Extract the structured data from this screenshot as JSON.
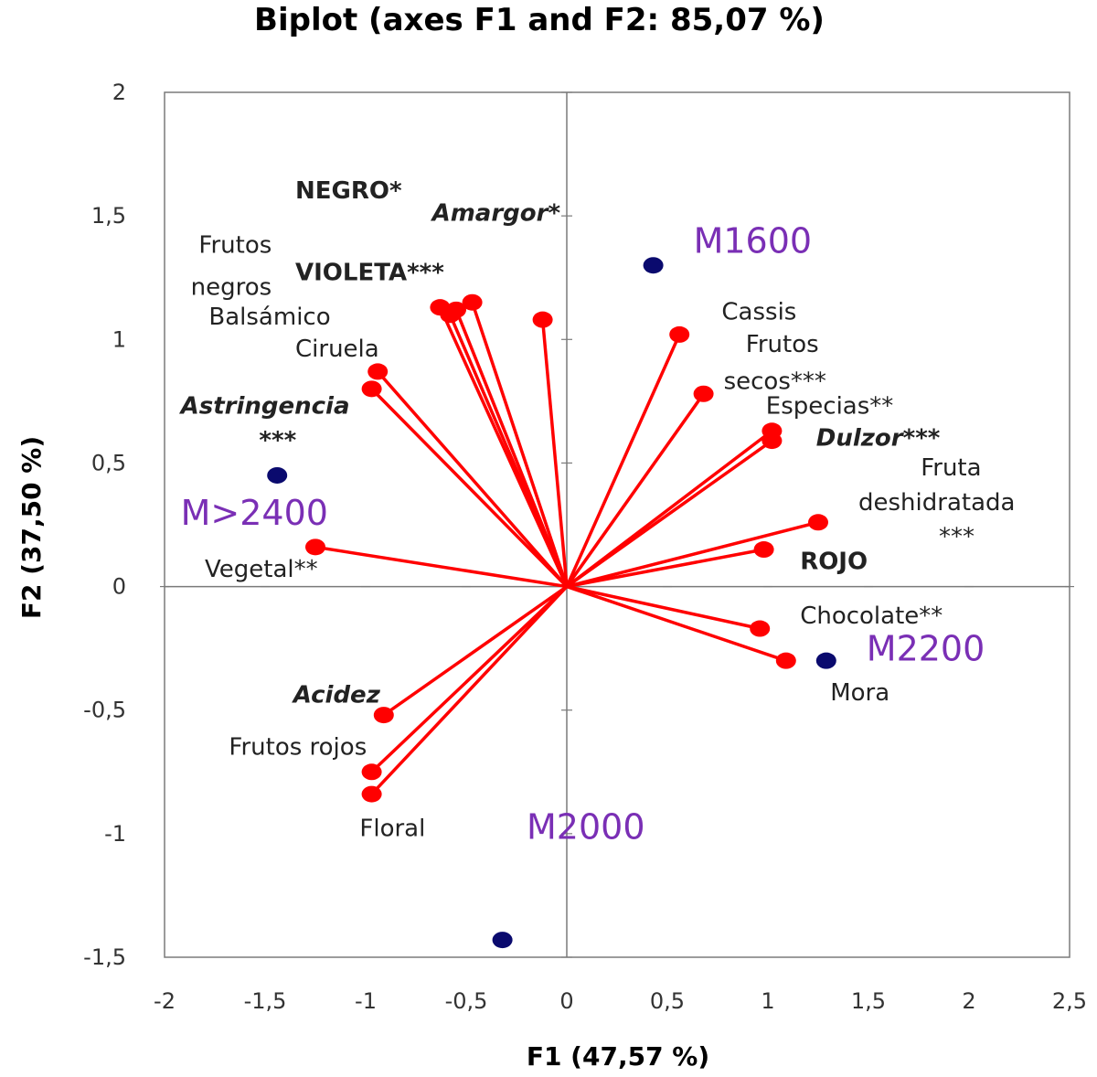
{
  "chart_data": {
    "type": "scatter",
    "title": "Biplot (axes F1 and F2: 85,07 %)",
    "xlabel": "F1 (47,57 %)",
    "ylabel": "F2 (37,50 %)",
    "xlim": [
      -2,
      2.5
    ],
    "ylim": [
      -1.5,
      2
    ],
    "x_ticks": [
      "-2",
      "-1,5",
      "-1",
      "-0,5",
      "0",
      "0,5",
      "1",
      "1,5",
      "2",
      "2,5"
    ],
    "y_ticks": [
      "-1,5",
      "-1",
      "-0,5",
      "0",
      "0,5",
      "1",
      "1,5",
      "2"
    ],
    "grid": false,
    "colors": {
      "vectors": "#ff0000",
      "observations": "#0a0a6e",
      "observation_labels": "#7a2fb5"
    },
    "variables": [
      {
        "x": 0.56,
        "y": 1.02
      },
      {
        "x": 0.68,
        "y": 0.78
      },
      {
        "x": 1.02,
        "y": 0.63
      },
      {
        "x": 1.02,
        "y": 0.59
      },
      {
        "x": 1.25,
        "y": 0.26
      },
      {
        "x": 0.98,
        "y": 0.15
      },
      {
        "x": 0.96,
        "y": -0.17
      },
      {
        "x": 1.09,
        "y": -0.3
      },
      {
        "x": -0.12,
        "y": 1.08
      },
      {
        "x": -0.47,
        "y": 1.15
      },
      {
        "x": -0.55,
        "y": 1.12
      },
      {
        "x": -0.58,
        "y": 1.1
      },
      {
        "x": -0.63,
        "y": 1.13
      },
      {
        "x": -0.94,
        "y": 0.87
      },
      {
        "x": -0.97,
        "y": 0.8
      },
      {
        "x": -1.25,
        "y": 0.16
      },
      {
        "x": -0.91,
        "y": -0.52
      },
      {
        "x": -0.97,
        "y": -0.75
      },
      {
        "x": -0.97,
        "y": -0.84
      }
    ],
    "labels": [
      {
        "text": "NEGRO*",
        "x": -1.35,
        "y": 1.57,
        "bold": true,
        "italic": false
      },
      {
        "text": "Amargor*",
        "x": -0.67,
        "y": 1.48,
        "bold": true,
        "italic": true
      },
      {
        "text": "Frutos",
        "x": -1.83,
        "y": 1.35,
        "bold": false,
        "italic": false
      },
      {
        "text": "VIOLETA***",
        "x": -1.35,
        "y": 1.24,
        "bold": true,
        "italic": false
      },
      {
        "text": "negros",
        "x": -1.87,
        "y": 1.18,
        "bold": false,
        "italic": false
      },
      {
        "text": "Balsámico",
        "x": -1.78,
        "y": 1.06,
        "bold": false,
        "italic": false
      },
      {
        "text": "Ciruela",
        "x": -1.35,
        "y": 0.93,
        "bold": false,
        "italic": false
      },
      {
        "text": "Astringencia",
        "x": -1.92,
        "y": 0.7,
        "bold": true,
        "italic": true
      },
      {
        "text": "***",
        "x": -1.53,
        "y": 0.56,
        "bold": true,
        "italic": false
      },
      {
        "text": "Vegetal**",
        "x": -1.8,
        "y": 0.04,
        "bold": false,
        "italic": false
      },
      {
        "text": "Acidez",
        "x": -1.36,
        "y": -0.47,
        "bold": true,
        "italic": true
      },
      {
        "text": "Frutos rojos",
        "x": -1.68,
        "y": -0.68,
        "bold": false,
        "italic": false
      },
      {
        "text": "Floral",
        "x": -1.03,
        "y": -1.01,
        "bold": false,
        "italic": false
      },
      {
        "text": "Cassis",
        "x": 0.77,
        "y": 1.08,
        "bold": false,
        "italic": false
      },
      {
        "text": "Frutos",
        "x": 0.89,
        "y": 0.95,
        "bold": false,
        "italic": false
      },
      {
        "text": "secos***",
        "x": 0.78,
        "y": 0.8,
        "bold": false,
        "italic": false
      },
      {
        "text": "Especias**",
        "x": 0.99,
        "y": 0.7,
        "bold": false,
        "italic": false
      },
      {
        "text": "Dulzor***",
        "x": 1.24,
        "y": 0.57,
        "bold": true,
        "italic": true
      },
      {
        "text": "Fruta",
        "x": 1.76,
        "y": 0.45,
        "bold": false,
        "italic": false
      },
      {
        "text": "deshidratada",
        "x": 1.45,
        "y": 0.31,
        "bold": false,
        "italic": false
      },
      {
        "text": "***",
        "x": 1.85,
        "y": 0.17,
        "bold": false,
        "italic": false
      },
      {
        "text": "ROJO",
        "x": 1.16,
        "y": 0.07,
        "bold": true,
        "italic": false
      },
      {
        "text": "Chocolate**",
        "x": 1.16,
        "y": -0.15,
        "bold": false,
        "italic": false
      },
      {
        "text": "Mora",
        "x": 1.31,
        "y": -0.46,
        "bold": false,
        "italic": false
      }
    ],
    "observations": [
      {
        "name": "M1600",
        "x": 0.43,
        "y": 1.3,
        "label_x": 0.63,
        "label_y": 1.35
      },
      {
        "name": "M>2400",
        "x": -1.44,
        "y": 0.45,
        "label_x": -1.92,
        "label_y": 0.25
      },
      {
        "name": "M2200",
        "x": 1.29,
        "y": -0.3,
        "label_x": 1.49,
        "label_y": -0.3
      },
      {
        "name": "M2000",
        "x": -0.32,
        "y": -1.43,
        "label_x": -0.2,
        "label_y": -1.02
      }
    ]
  }
}
